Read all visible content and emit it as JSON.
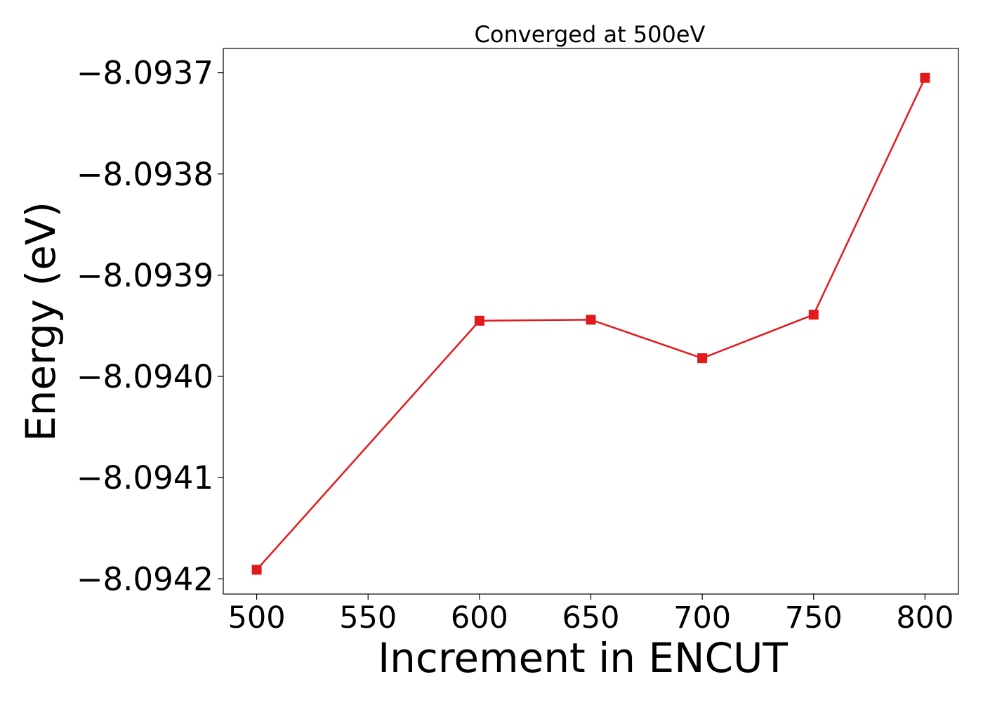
{
  "chart_data": {
    "type": "line",
    "title": "Converged at 500eV",
    "xlabel": "Increment in ENCUT",
    "ylabel": "Energy (eV)",
    "xlim": [
      485,
      815
    ],
    "ylim": [
      -8.094215,
      -8.093676
    ],
    "x_ticks": [
      500,
      550,
      600,
      650,
      700,
      750,
      800
    ],
    "x_tick_labels": [
      "500",
      "550",
      "600",
      "650",
      "700",
      "750",
      "800"
    ],
    "y_ticks": [
      -8.0937,
      -8.0938,
      -8.0939,
      -8.094,
      -8.0941,
      -8.0942
    ],
    "y_tick_labels": [
      "−8.0937",
      "−8.0938",
      "−8.0939",
      "−8.0940",
      "−8.0941",
      "−8.0942"
    ],
    "grid": false,
    "legend": "none",
    "series": [
      {
        "color": "#e31a1c",
        "marker": "square",
        "x": [
          500,
          600,
          650,
          700,
          750,
          800
        ],
        "y": [
          -8.094191,
          -8.093945,
          -8.093944,
          -8.093982,
          -8.093939,
          -8.093705
        ]
      }
    ]
  }
}
